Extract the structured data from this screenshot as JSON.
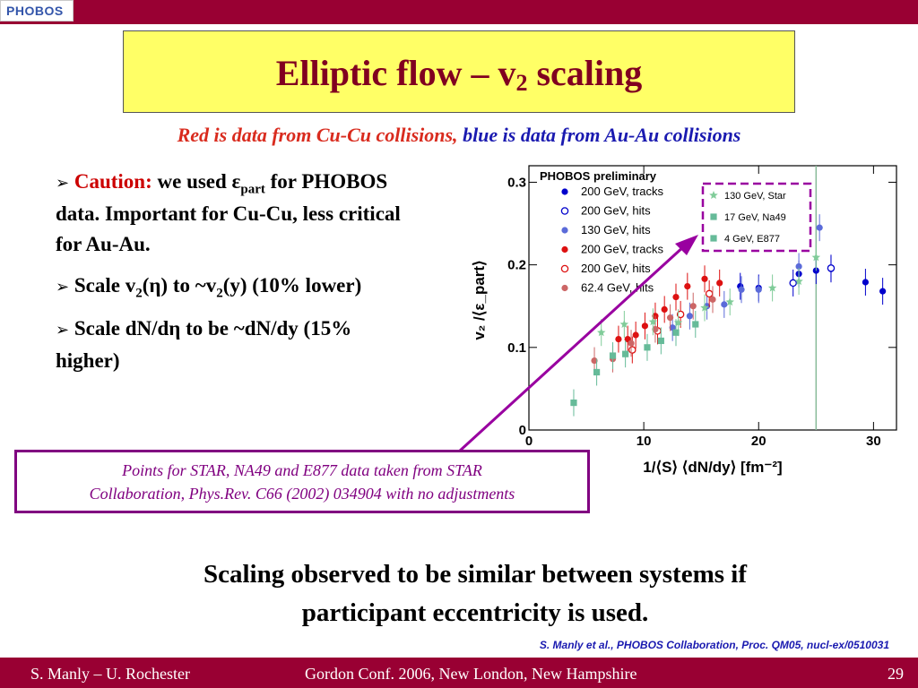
{
  "header": {
    "logo_text": "PHOBOS",
    "bar_color": "#990033"
  },
  "title": {
    "main": "Elliptic flow – v",
    "sub": "2",
    "tail": " scaling"
  },
  "subtitle": {
    "red": "Red is data from Cu-Cu collisions,",
    "blue": "blue is data from Au-Au collisions"
  },
  "bullets": {
    "b1": {
      "caution": "Caution:",
      "pre": "we used ε",
      "sub": "part",
      "post": " for PHOBOS data.  Important for Cu-Cu, less critical for Au-Au."
    },
    "b2": {
      "pre": "Scale v",
      "sub1": "2",
      "mid": "(η) to  ~v",
      "sub2": "2",
      "post": "(y) (10% lower)"
    },
    "b3": {
      "text": "Scale dN/dη to be ~dN/dy (15% higher)"
    }
  },
  "note": {
    "line1": "Points for STAR, NA49 and E877 data taken from STAR",
    "line2": "Collaboration, Phys.Rev. C66 (2002) 034904 with no adjustments"
  },
  "conclusion": {
    "line1": "Scaling observed to be similar between systems if",
    "line2": "participant eccentricity is used."
  },
  "reference": "S. Manly et al., PHOBOS Collaboration, Proc. QM05, nucl-ex/0510031",
  "footer": {
    "left": "S. Manly – U. Rochester",
    "center": "Gordon Conf. 2006, New London, New Hampshire",
    "right": "29"
  },
  "chart_data": {
    "type": "scatter",
    "title": "PHOBOS preliminary",
    "xlabel": "1/⟨S⟩ ⟨dN/dy⟩ [fm⁻²]",
    "ylabel": "v₂ /⟨ε_part⟩",
    "xlim": [
      0,
      32
    ],
    "ylim": [
      0,
      0.32
    ],
    "x_ticks": [
      "0",
      "10",
      "20",
      "30"
    ],
    "y_ticks": [
      "0",
      "0.1",
      "0.2",
      "0.3"
    ],
    "legend_location": "top-left",
    "grid": false,
    "series": [
      {
        "name": "200 GeV, tracks",
        "system": "Au-Au",
        "color": "#0000cc",
        "marker": "filled-circle",
        "points": [
          [
            18.4,
            0.174
          ],
          [
            20.0,
            0.172
          ],
          [
            23.5,
            0.189
          ],
          [
            25.0,
            0.193
          ],
          [
            26.3,
            0.195
          ],
          [
            29.3,
            0.179
          ],
          [
            30.8,
            0.168
          ]
        ]
      },
      {
        "name": "200 GeV, hits",
        "system": "Au-Au",
        "color": "#0000cc",
        "marker": "open-circle",
        "points": [
          [
            23.0,
            0.178
          ],
          [
            26.3,
            0.196
          ]
        ]
      },
      {
        "name": "130 GeV, hits",
        "system": "Au-Au",
        "color": "#5b6bd9",
        "marker": "filled-circle",
        "points": [
          [
            12.5,
            0.124
          ],
          [
            14.0,
            0.138
          ],
          [
            15.5,
            0.15
          ],
          [
            17.0,
            0.152
          ],
          [
            18.5,
            0.17
          ],
          [
            20.0,
            0.17
          ],
          [
            23.5,
            0.198
          ],
          [
            25.3,
            0.245
          ]
        ]
      },
      {
        "name": "200 GeV, tracks",
        "system": "Cu-Cu",
        "color": "#dd1111",
        "marker": "filled-circle",
        "points": [
          [
            7.8,
            0.11
          ],
          [
            8.6,
            0.11
          ],
          [
            9.3,
            0.115
          ],
          [
            10.1,
            0.126
          ],
          [
            11.0,
            0.138
          ],
          [
            11.8,
            0.146
          ],
          [
            12.8,
            0.161
          ],
          [
            13.8,
            0.174
          ],
          [
            15.3,
            0.183
          ],
          [
            16.6,
            0.178
          ]
        ]
      },
      {
        "name": "200 GeV, hits",
        "system": "Cu-Cu",
        "color": "#dd1111",
        "marker": "open-circle",
        "points": [
          [
            9.0,
            0.097
          ],
          [
            11.2,
            0.12
          ],
          [
            13.2,
            0.14
          ],
          [
            15.7,
            0.165
          ]
        ]
      },
      {
        "name": "62.4 GeV, hits",
        "system": "Cu-Cu",
        "color": "#cc6666",
        "marker": "filled-circle",
        "points": [
          [
            5.7,
            0.084
          ],
          [
            7.3,
            0.086
          ],
          [
            8.9,
            0.105
          ],
          [
            11.0,
            0.122
          ],
          [
            12.3,
            0.136
          ],
          [
            14.3,
            0.15
          ],
          [
            16.0,
            0.158
          ]
        ]
      },
      {
        "name": "130 GeV, Star",
        "color": "#80cc99",
        "marker": "star",
        "points": [
          [
            6.3,
            0.118
          ],
          [
            8.3,
            0.128
          ],
          [
            10.8,
            0.131
          ],
          [
            13.0,
            0.13
          ],
          [
            15.3,
            0.148
          ],
          [
            17.5,
            0.155
          ],
          [
            21.2,
            0.172
          ],
          [
            23.5,
            0.18
          ],
          [
            25.0,
            0.209
          ]
        ]
      },
      {
        "name": "17 GeV, Na49",
        "color": "#66bb99",
        "marker": "square",
        "points": [
          [
            3.9,
            0.033
          ],
          [
            5.9,
            0.07
          ],
          [
            7.3,
            0.09
          ],
          [
            8.4,
            0.092
          ],
          [
            10.3,
            0.1
          ],
          [
            11.5,
            0.108
          ],
          [
            12.8,
            0.118
          ],
          [
            14.5,
            0.128
          ]
        ]
      },
      {
        "name": "4 GeV, E877",
        "color": "#66bb99",
        "marker": "square",
        "points": []
      }
    ],
    "vertical_line": {
      "x": 25.0,
      "color": "#88bb99"
    }
  }
}
